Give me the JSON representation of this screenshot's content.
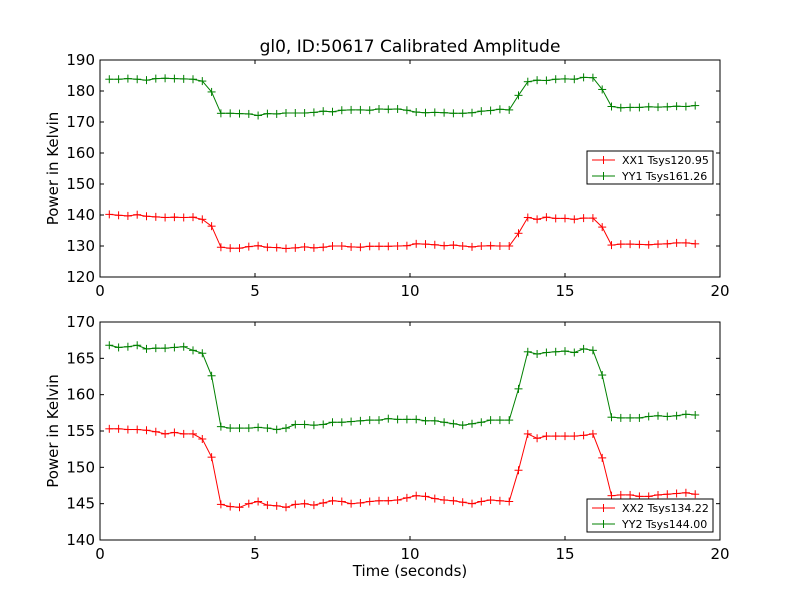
{
  "title": "gl0, ID:50617 Calibrated Amplitude",
  "colors": {
    "xx": "#ff0000",
    "yy": "#008000",
    "axis": "#000000",
    "background": "#ffffff"
  },
  "chart_data": [
    {
      "type": "line",
      "title": "gl0, ID:50617 Calibrated Amplitude",
      "xlabel": "",
      "ylabel": "Power in Kelvin",
      "xlim": [
        0,
        20
      ],
      "ylim": [
        120,
        190
      ],
      "xticks": [
        "0",
        "5",
        "10",
        "15",
        "20"
      ],
      "yticks": [
        "120",
        "130",
        "140",
        "150",
        "160",
        "170",
        "180",
        "190"
      ],
      "grid": false,
      "legend_position": "center-right",
      "marker": "+",
      "x": [
        0.3,
        0.6,
        0.9,
        1.2,
        1.5,
        1.8,
        2.1,
        2.4,
        2.7,
        3.0,
        3.3,
        3.6,
        3.9,
        4.2,
        4.5,
        4.8,
        5.1,
        5.4,
        5.7,
        6.0,
        6.3,
        6.6,
        6.9,
        7.2,
        7.5,
        7.8,
        8.1,
        8.4,
        8.7,
        9.0,
        9.3,
        9.6,
        9.9,
        10.2,
        10.5,
        10.8,
        11.1,
        11.4,
        11.7,
        12.0,
        12.3,
        12.6,
        12.9,
        13.2,
        13.5,
        13.8,
        14.1,
        14.4,
        14.7,
        15.0,
        15.3,
        15.6,
        15.9,
        16.2,
        16.5,
        16.8,
        17.1,
        17.4,
        17.7,
        18.0,
        18.3,
        18.6,
        18.9,
        19.2
      ],
      "series": [
        {
          "name": "XX1 Tsys120.95",
          "color": "#ff0000",
          "values": [
            140.2,
            139.9,
            139.7,
            140.1,
            139.6,
            139.4,
            139.2,
            139.3,
            139.2,
            139.3,
            138.6,
            136.4,
            129.6,
            129.3,
            129.3,
            129.8,
            130.1,
            129.6,
            129.5,
            129.2,
            129.4,
            129.7,
            129.4,
            129.6,
            130.0,
            130.0,
            129.7,
            129.6,
            129.9,
            129.9,
            129.9,
            130.0,
            130.1,
            130.7,
            130.6,
            130.4,
            130.1,
            130.3,
            130.0,
            129.7,
            130.0,
            130.1,
            130.0,
            130.0,
            134.1,
            139.2,
            138.6,
            139.3,
            138.9,
            138.9,
            138.6,
            139.0,
            139.0,
            136.1,
            130.3,
            130.6,
            130.6,
            130.5,
            130.4,
            130.6,
            130.7,
            131.0,
            131.0,
            130.7
          ]
        },
        {
          "name": "YY1 Tsys161.26",
          "color": "#008000",
          "values": [
            183.8,
            183.8,
            184.0,
            183.8,
            183.5,
            184.0,
            184.1,
            184.0,
            183.9,
            183.8,
            183.2,
            179.7,
            172.8,
            172.8,
            172.7,
            172.6,
            172.1,
            172.7,
            172.6,
            172.9,
            172.9,
            172.9,
            173.1,
            173.5,
            173.3,
            173.8,
            173.9,
            173.9,
            173.8,
            174.2,
            174.1,
            174.2,
            173.8,
            173.2,
            173.0,
            173.1,
            173.0,
            172.8,
            172.8,
            173.0,
            173.5,
            173.7,
            174.1,
            173.9,
            178.6,
            183.0,
            183.5,
            183.4,
            183.8,
            183.9,
            183.8,
            184.4,
            184.3,
            180.5,
            175.0,
            174.6,
            174.7,
            174.7,
            174.9,
            174.8,
            174.9,
            175.1,
            175.0,
            175.3
          ]
        }
      ]
    },
    {
      "type": "line",
      "title": "",
      "xlabel": "Time (seconds)",
      "ylabel": "Power in Kelvin",
      "xlim": [
        0,
        20
      ],
      "ylim": [
        140,
        170
      ],
      "xticks": [
        "0",
        "5",
        "10",
        "15",
        "20"
      ],
      "yticks": [
        "140",
        "145",
        "150",
        "155",
        "160",
        "165",
        "170"
      ],
      "grid": false,
      "legend_position": "lower-right",
      "marker": "+",
      "x": [
        0.3,
        0.6,
        0.9,
        1.2,
        1.5,
        1.8,
        2.1,
        2.4,
        2.7,
        3.0,
        3.3,
        3.6,
        3.9,
        4.2,
        4.5,
        4.8,
        5.1,
        5.4,
        5.7,
        6.0,
        6.3,
        6.6,
        6.9,
        7.2,
        7.5,
        7.8,
        8.1,
        8.4,
        8.7,
        9.0,
        9.3,
        9.6,
        9.9,
        10.2,
        10.5,
        10.8,
        11.1,
        11.4,
        11.7,
        12.0,
        12.3,
        12.6,
        12.9,
        13.2,
        13.5,
        13.8,
        14.1,
        14.4,
        14.7,
        15.0,
        15.3,
        15.6,
        15.9,
        16.2,
        16.5,
        16.8,
        17.1,
        17.4,
        17.7,
        18.0,
        18.3,
        18.6,
        18.9,
        19.2
      ],
      "series": [
        {
          "name": "XX2 Tsys134.22",
          "color": "#ff0000",
          "values": [
            155.3,
            155.3,
            155.2,
            155.2,
            155.1,
            154.9,
            154.6,
            154.8,
            154.6,
            154.6,
            153.9,
            151.4,
            144.9,
            144.6,
            144.5,
            145.0,
            145.3,
            144.8,
            144.7,
            144.5,
            144.9,
            145.0,
            144.8,
            145.1,
            145.4,
            145.3,
            145.0,
            145.1,
            145.3,
            145.4,
            145.4,
            145.5,
            145.8,
            146.1,
            146.0,
            145.7,
            145.5,
            145.4,
            145.2,
            145.0,
            145.3,
            145.5,
            145.4,
            145.3,
            149.6,
            154.6,
            154.0,
            154.3,
            154.3,
            154.3,
            154.3,
            154.4,
            154.6,
            151.3,
            146.1,
            146.2,
            146.2,
            146.0,
            146.0,
            146.2,
            146.3,
            146.4,
            146.5,
            146.3
          ]
        },
        {
          "name": "YY2 Tsys144.00",
          "color": "#008000",
          "values": [
            166.8,
            166.5,
            166.6,
            166.8,
            166.3,
            166.4,
            166.4,
            166.5,
            166.6,
            166.1,
            165.7,
            162.6,
            155.6,
            155.4,
            155.4,
            155.4,
            155.5,
            155.4,
            155.2,
            155.4,
            155.9,
            155.9,
            155.8,
            155.9,
            156.2,
            156.2,
            156.3,
            156.4,
            156.5,
            156.5,
            156.7,
            156.6,
            156.6,
            156.6,
            156.4,
            156.4,
            156.2,
            156.0,
            155.8,
            156.0,
            156.2,
            156.5,
            156.5,
            156.5,
            160.8,
            165.9,
            165.6,
            165.8,
            165.9,
            166.0,
            165.8,
            166.3,
            166.1,
            162.7,
            156.9,
            156.8,
            156.8,
            156.8,
            157.0,
            157.1,
            157.0,
            157.1,
            157.3,
            157.2
          ]
        }
      ]
    }
  ]
}
